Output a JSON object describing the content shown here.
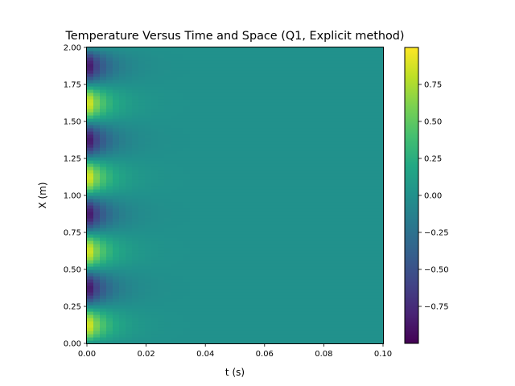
{
  "chart_data": {
    "type": "heatmap",
    "title": "Temperature Versus Time and Space (Q1, Explicit method)",
    "xlabel": "t (s)",
    "ylabel": "X (m)",
    "xlim": [
      0.0,
      0.1
    ],
    "ylim": [
      0.0,
      2.0
    ],
    "x_ticks": [
      "0.00",
      "0.02",
      "0.04",
      "0.06",
      "0.08",
      "0.10"
    ],
    "y_ticks": [
      "0.00",
      "0.25",
      "0.50",
      "0.75",
      "1.00",
      "1.25",
      "1.50",
      "1.75",
      "2.00"
    ],
    "colormap": "viridis",
    "color_range": [
      -1.0,
      1.0
    ],
    "colorbar_ticks": [
      "0.75",
      "0.50",
      "0.25",
      "0.00",
      "−0.25",
      "−0.50",
      "−0.75"
    ],
    "field": {
      "description_values": "T(x,t) = sin(2*pi*x/0.5) * exp(-decay*t)",
      "spatial_period_m": 0.5,
      "decay_rate_per_s": 160
    },
    "grid": false,
    "colorbar": "right"
  }
}
